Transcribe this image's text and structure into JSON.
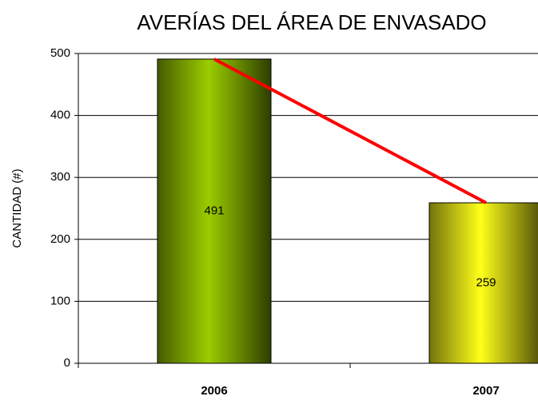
{
  "chart_data": {
    "type": "bar",
    "title": "AVERÍAS DEL ÁREA DE ENVASADO",
    "y_label": "CANTIDAD (#)",
    "categories": [
      "2006",
      "2007"
    ],
    "values": [
      491,
      259
    ],
    "colors": [
      "#9acd00",
      "#ffff1a"
    ],
    "line_color": "#ff0000",
    "ylim": [
      0,
      500
    ],
    "yticks": [
      0,
      100,
      200,
      300,
      400,
      500
    ],
    "grid": true
  }
}
